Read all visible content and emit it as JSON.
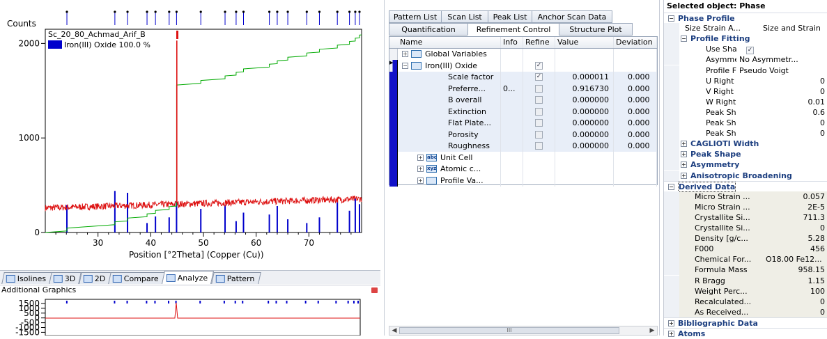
{
  "chart": {
    "y_title": "Counts",
    "x_title": "Position [°2Theta] (Copper (Cu))",
    "sample_name": "Sc_20_80_Achmad_Arif_B",
    "legend": "Iron(III) Oxide 100.0 %",
    "y_ticks": [
      "0",
      "1000",
      "2000"
    ],
    "x_ticks": [
      "30",
      "40",
      "50",
      "60",
      "70"
    ],
    "x_range": [
      20,
      80
    ],
    "y_range": [
      0,
      2150
    ],
    "colors": {
      "observed": "#dd1111",
      "calculated": "#00aa00",
      "reference": "#0000cc"
    },
    "reference_peaks": [
      {
        "x": 24.1,
        "h": 290
      },
      {
        "x": 33.2,
        "h": 440
      },
      {
        "x": 35.6,
        "h": 420
      },
      {
        "x": 39.3,
        "h": 100
      },
      {
        "x": 40.9,
        "h": 170
      },
      {
        "x": 43.5,
        "h": 160
      },
      {
        "x": 44.9,
        "h": 330
      },
      {
        "x": 49.5,
        "h": 250
      },
      {
        "x": 54.1,
        "h": 290
      },
      {
        "x": 56.2,
        "h": 120
      },
      {
        "x": 57.6,
        "h": 210
      },
      {
        "x": 62.5,
        "h": 190
      },
      {
        "x": 64.0,
        "h": 280
      },
      {
        "x": 66.0,
        "h": 140
      },
      {
        "x": 69.6,
        "h": 100
      },
      {
        "x": 72.0,
        "h": 160
      },
      {
        "x": 75.4,
        "h": 330
      },
      {
        "x": 77.7,
        "h": 230
      },
      {
        "x": 78.8,
        "h": 360
      },
      {
        "x": 79.6,
        "h": 300
      }
    ]
  },
  "bottom_tabs": [
    {
      "label": "Isolines",
      "active": false
    },
    {
      "label": "3D",
      "active": false
    },
    {
      "label": "2D",
      "active": false
    },
    {
      "label": "Compare",
      "active": false
    },
    {
      "label": "Analyze",
      "active": true
    },
    {
      "label": "Pattern",
      "active": false
    }
  ],
  "additional_graphics": {
    "title": "Additional Graphics",
    "y_ticks": [
      "1500",
      "1000",
      "500",
      "0",
      "-500",
      "-1000",
      "-1500"
    ]
  },
  "tabs_row1": [
    "Pattern List",
    "Scan List",
    "Peak List",
    "Anchor Scan Data"
  ],
  "tabs_row2": [
    "Quantification",
    "Refinement Control",
    "Structure Plot"
  ],
  "active_tab": "Refinement Control",
  "tree": {
    "headers": [
      "Name",
      "Info",
      "Refine",
      "Value",
      "Deviation"
    ],
    "rows": [
      {
        "name": "Global Variables",
        "expander": "+",
        "icon": "globe-icon",
        "icon_text": "",
        "level": 0,
        "refine": "",
        "value": "",
        "dev": "",
        "info": ""
      },
      {
        "name": "Iron(III) Oxide",
        "expander": "−",
        "icon": "phase-icon",
        "icon_text": "",
        "level": 0,
        "refine": "on",
        "value": "",
        "dev": "",
        "info": ""
      },
      {
        "name": "Scale factor",
        "level": 2,
        "refine": "on",
        "value": "0.000011",
        "dev": "0.000",
        "info": ""
      },
      {
        "name": "Preferre...",
        "level": 2,
        "refine": "off",
        "value": "0.916730",
        "dev": "0.000",
        "info": "0..."
      },
      {
        "name": "B overall",
        "level": 2,
        "refine": "off",
        "value": "0.000000",
        "dev": "0.000",
        "info": ""
      },
      {
        "name": "Extinction",
        "level": 2,
        "refine": "off",
        "value": "0.000000",
        "dev": "0.000",
        "info": ""
      },
      {
        "name": "Flat Plate...",
        "level": 2,
        "refine": "off",
        "value": "0.000000",
        "dev": "0.000",
        "info": ""
      },
      {
        "name": "Porosity",
        "level": 2,
        "refine": "off",
        "value": "0.000000",
        "dev": "0.000",
        "info": ""
      },
      {
        "name": "Roughness",
        "level": 2,
        "refine": "off",
        "value": "0.000000",
        "dev": "0.000",
        "info": ""
      },
      {
        "name": "Unit Cell",
        "expander": "+",
        "icon": "unit-cell-icon",
        "icon_text": "abc",
        "level": 1,
        "refine": "",
        "value": "",
        "dev": "",
        "info": ""
      },
      {
        "name": "Atomic c...",
        "expander": "+",
        "icon": "atomic-coords-icon",
        "icon_text": "xyz",
        "level": 1,
        "refine": "",
        "value": "",
        "dev": "",
        "info": ""
      },
      {
        "name": "Profile Va...",
        "expander": "+",
        "icon": "profile-icon",
        "icon_text": "",
        "level": 1,
        "refine": "",
        "value": "",
        "dev": "",
        "info": ""
      }
    ]
  },
  "scroll_thumb_label": "III",
  "properties": {
    "title": "Selected object: Phase",
    "rows": [
      {
        "kind": "cat",
        "name": "Phase Profile",
        "expander": "−"
      },
      {
        "kind": "prop",
        "name": "Size Strain A...",
        "value": "Size and Strain",
        "indent": 1,
        "align": "left"
      },
      {
        "kind": "subcat",
        "name": "Profile Fitting",
        "expander": "−"
      },
      {
        "kind": "prop",
        "name": "Use Shap...",
        "value": "",
        "check": true,
        "indent": 2
      },
      {
        "kind": "prop",
        "name": "Asymmet...",
        "value": "No Asymmetr...",
        "indent": 2,
        "align": "left"
      },
      {
        "kind": "prop",
        "name": "Profile Fu...",
        "value": "Pseudo Voigt",
        "indent": 2,
        "align": "left"
      },
      {
        "kind": "prop",
        "name": "U Right",
        "value": "0",
        "indent": 2,
        "align": "right"
      },
      {
        "kind": "prop",
        "name": "V Right",
        "value": "0",
        "indent": 2,
        "align": "right"
      },
      {
        "kind": "prop",
        "name": "W Right",
        "value": "0.01",
        "indent": 2,
        "align": "right"
      },
      {
        "kind": "prop",
        "name": "Peak Sha...",
        "value": "0.6",
        "indent": 2,
        "align": "right"
      },
      {
        "kind": "prop",
        "name": "Peak Sha...",
        "value": "0",
        "indent": 2,
        "align": "right"
      },
      {
        "kind": "prop",
        "name": "Peak Sha...",
        "value": "0",
        "indent": 2,
        "align": "right"
      },
      {
        "kind": "subcat",
        "name": "CAGLIOTI Width",
        "expander": "+"
      },
      {
        "kind": "subcat",
        "name": "Peak Shape",
        "expander": "+"
      },
      {
        "kind": "subcat",
        "name": "Asymmetry",
        "expander": "+"
      },
      {
        "kind": "subcat",
        "name": "Anisotropic Broadening",
        "expander": "+"
      },
      {
        "kind": "cat",
        "name": "Derived Data",
        "expander": "−"
      },
      {
        "kind": "derived",
        "name": "Micro Strain ...",
        "value": "0.057"
      },
      {
        "kind": "derived",
        "name": "Micro Strain ...",
        "value": "2E-5"
      },
      {
        "kind": "derived",
        "name": "Crystallite Si...",
        "value": "711.3"
      },
      {
        "kind": "derived",
        "name": "Crystallite Si...",
        "value": "0"
      },
      {
        "kind": "derived",
        "name": "Density [g/c...",
        "value": "5.28"
      },
      {
        "kind": "derived",
        "name": "F000",
        "value": "456"
      },
      {
        "kind": "derived",
        "name": "Chemical For...",
        "value": "O18.00 Fe12...",
        "align": "left"
      },
      {
        "kind": "derived",
        "name": "Formula Mass",
        "value": "958.15"
      },
      {
        "kind": "derived",
        "name": "R Bragg",
        "value": "1.15"
      },
      {
        "kind": "derived",
        "name": "Weight Perc...",
        "value": "100"
      },
      {
        "kind": "derived",
        "name": "Recalculated...",
        "value": "0"
      },
      {
        "kind": "derived",
        "name": "As Received...",
        "value": "0"
      },
      {
        "kind": "cat",
        "name": "Bibliographic Data",
        "expander": "+"
      },
      {
        "kind": "cat",
        "name": "Atoms",
        "expander": "+"
      }
    ]
  }
}
